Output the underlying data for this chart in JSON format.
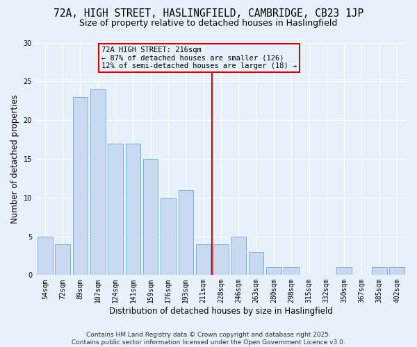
{
  "title1": "72A, HIGH STREET, HASLINGFIELD, CAMBRIDGE, CB23 1JP",
  "title2": "Size of property relative to detached houses in Haslingfield",
  "xlabel": "Distribution of detached houses by size in Haslingfield",
  "ylabel": "Number of detached properties",
  "categories": [
    "54sqm",
    "72sqm",
    "89sqm",
    "107sqm",
    "124sqm",
    "141sqm",
    "159sqm",
    "176sqm",
    "193sqm",
    "211sqm",
    "228sqm",
    "246sqm",
    "263sqm",
    "280sqm",
    "298sqm",
    "315sqm",
    "332sqm",
    "350sqm",
    "367sqm",
    "385sqm",
    "402sqm"
  ],
  "values": [
    5,
    4,
    23,
    24,
    17,
    17,
    15,
    10,
    11,
    4,
    4,
    5,
    3,
    1,
    1,
    0,
    0,
    1,
    0,
    1,
    1
  ],
  "bar_color": "#c8d9f0",
  "bar_edge_color": "#6aaad4",
  "background_color": "#e8f0fa",
  "grid_color": "#ffffff",
  "vline_x_index": 9.5,
  "vline_color": "#cc0000",
  "annotation_title": "72A HIGH STREET: 216sqm",
  "annotation_line1": "← 87% of detached houses are smaller (126)",
  "annotation_line2": "12% of semi-detached houses are larger (18) →",
  "annotation_box_color": "#cc0000",
  "ylim": [
    0,
    30
  ],
  "yticks": [
    0,
    5,
    10,
    15,
    20,
    25,
    30
  ],
  "footer": "Contains HM Land Registry data © Crown copyright and database right 2025.\nContains public sector information licensed under the Open Government Licence v3.0.",
  "title_fontsize": 10.5,
  "subtitle_fontsize": 9,
  "axis_label_fontsize": 8.5,
  "tick_fontsize": 7,
  "annotation_fontsize": 7.5,
  "footer_fontsize": 6.5
}
